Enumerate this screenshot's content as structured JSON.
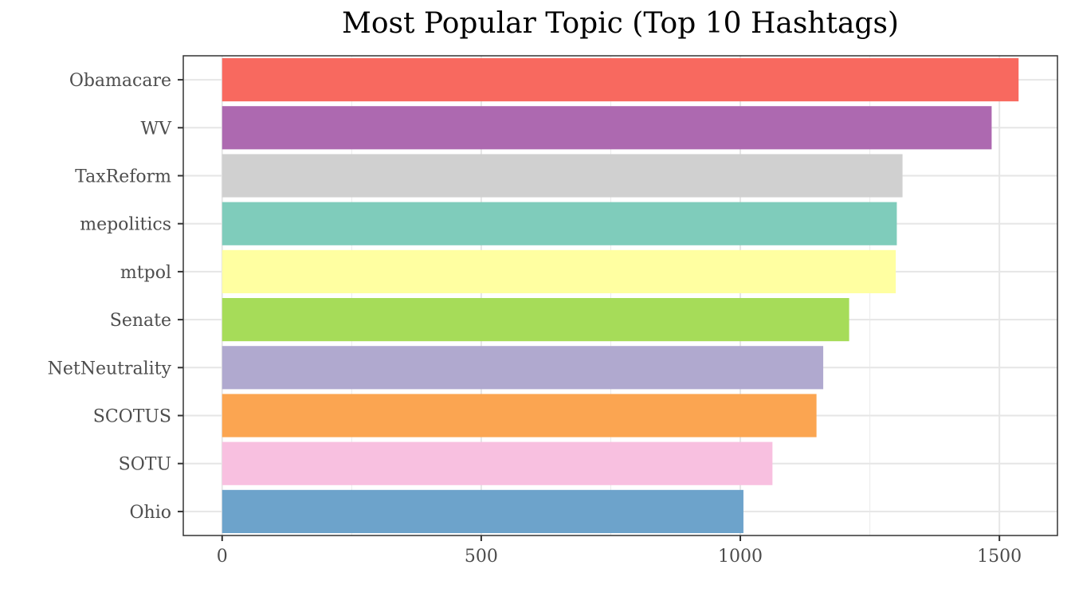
{
  "chart_data": {
    "type": "bar",
    "orientation": "horizontal",
    "title": "Most Popular Topic (Top 10 Hashtags)",
    "xlabel": "",
    "ylabel": "",
    "categories": [
      "Obamacare",
      "WV",
      "TaxReform",
      "mepolitics",
      "mtpol",
      "Senate",
      "NetNeutrality",
      "SCOTUS",
      "SOTU",
      "Ohio"
    ],
    "values": [
      1537,
      1485,
      1313,
      1302,
      1300,
      1210,
      1160,
      1147,
      1062,
      1006
    ],
    "colors": [
      "#F8695F",
      "#AD69B0",
      "#D0D0D0",
      "#7FCCBB",
      "#FFFFA1",
      "#A6DC59",
      "#B0A9CF",
      "#FBA551",
      "#F8C0E0",
      "#6DA3CB"
    ],
    "xlim": [
      -75,
      1612
    ],
    "xticks": [
      0,
      500,
      1000,
      1500
    ],
    "xtick_labels": [
      "0",
      "500",
      "1000",
      "1500"
    ],
    "grid": true,
    "legend": "none"
  }
}
